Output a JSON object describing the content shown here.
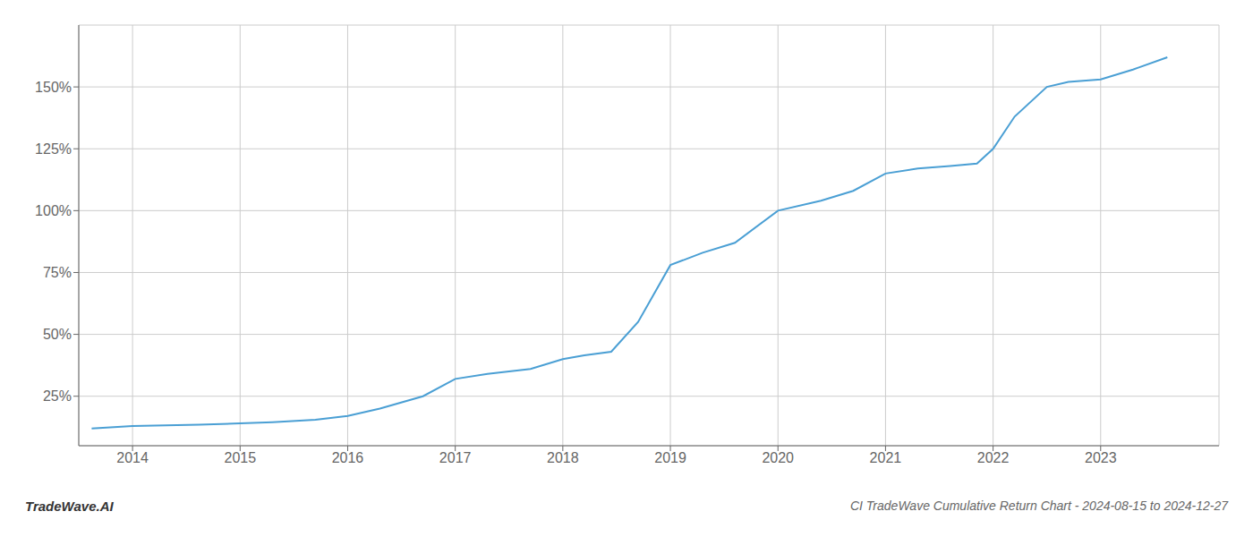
{
  "chart_data": {
    "type": "line",
    "title": "CI TradeWave Cumulative Return Chart - 2024-08-15 to 2024-12-27",
    "annotations": [
      "TradeWave.AI"
    ],
    "x": [
      2013.62,
      2014.0,
      2014.62,
      2015.0,
      2015.3,
      2015.7,
      2016.0,
      2016.3,
      2016.7,
      2017.0,
      2017.3,
      2017.7,
      2018.0,
      2018.2,
      2018.45,
      2018.7,
      2019.0,
      2019.3,
      2019.6,
      2020.0,
      2020.4,
      2020.7,
      2021.0,
      2021.3,
      2021.6,
      2021.85,
      2022.0,
      2022.2,
      2022.5,
      2022.7,
      2023.0,
      2023.3,
      2023.62
    ],
    "values": [
      12.0,
      13.0,
      13.5,
      14.0,
      14.5,
      15.5,
      17.0,
      20.0,
      25.0,
      32.0,
      34.0,
      36.0,
      40.0,
      41.5,
      43.0,
      55.0,
      78.0,
      83.0,
      87.0,
      100.0,
      104.0,
      108.0,
      115.0,
      117.0,
      118.0,
      119.0,
      125.0,
      138.0,
      150.0,
      152.0,
      153.0,
      157.0,
      162.0
    ],
    "color": "#4a9fd4",
    "xlim": [
      2013.5,
      2024.1
    ],
    "ylim": [
      5,
      175
    ],
    "xticks": [
      2014,
      2015,
      2016,
      2017,
      2018,
      2019,
      2020,
      2021,
      2022,
      2023
    ],
    "yticks": [
      {
        "value": 25,
        "label": "25%"
      },
      {
        "value": 50,
        "label": "50%"
      },
      {
        "value": 75,
        "label": "75%"
      },
      {
        "value": 100,
        "label": "100%"
      },
      {
        "value": 125,
        "label": "125%"
      },
      {
        "value": 150,
        "label": "150%"
      }
    ],
    "grid": true
  }
}
